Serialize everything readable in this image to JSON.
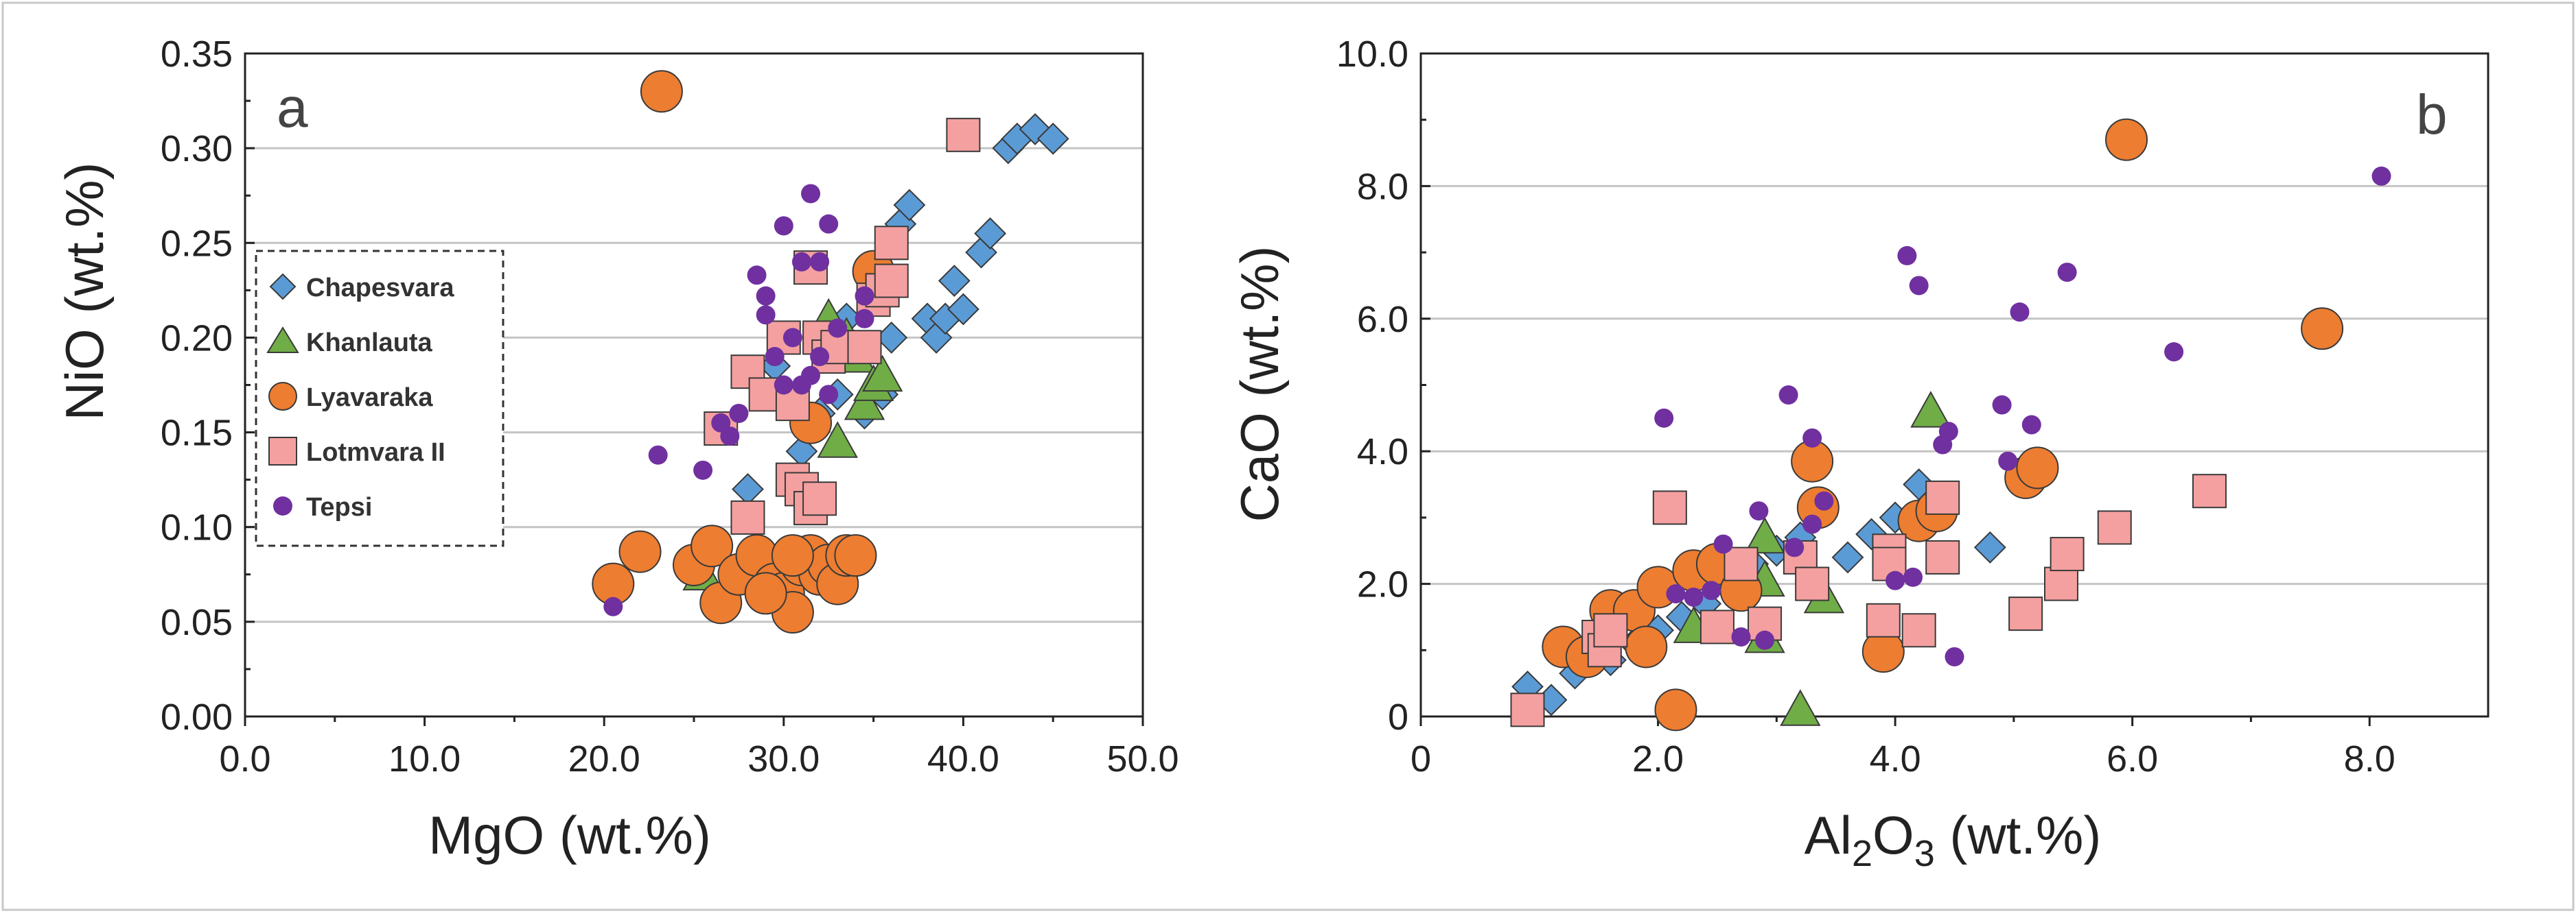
{
  "chart_data": [
    {
      "type": "scatter",
      "panel_label": "a",
      "xlabel": "MgO (wt.%)",
      "ylabel": "NiO (wt.%)",
      "xlim": [
        0,
        50
      ],
      "ylim": [
        0,
        0.35
      ],
      "xticks": [
        "0.0",
        "10.0",
        "20.0",
        "30.0",
        "40.0",
        "50.0"
      ],
      "yticks": [
        "0.00",
        "0.05",
        "0.10",
        "0.15",
        "0.20",
        "0.25",
        "0.30",
        "0.35"
      ],
      "grid": "horizontal",
      "legend": {
        "position": "left",
        "entries": [
          "Chapesvara",
          "Khanlauta",
          "Lyavaraka",
          "Lotmvara II",
          "Tepsi"
        ]
      },
      "series": [
        {
          "name": "Chapesvara",
          "marker": "diamond",
          "color": "#5b9bd5",
          "points": [
            [
              28.0,
              0.12
            ],
            [
              29.5,
              0.185
            ],
            [
              31.0,
              0.14
            ],
            [
              32.0,
              0.16
            ],
            [
              33.0,
              0.17
            ],
            [
              33.5,
              0.21
            ],
            [
              34.0,
              0.19
            ],
            [
              34.5,
              0.16
            ],
            [
              35.0,
              0.22
            ],
            [
              35.5,
              0.17
            ],
            [
              36.0,
              0.2
            ],
            [
              36.5,
              0.26
            ],
            [
              37.0,
              0.27
            ],
            [
              38.0,
              0.21
            ],
            [
              38.5,
              0.2
            ],
            [
              39.0,
              0.21
            ],
            [
              39.5,
              0.23
            ],
            [
              40.0,
              0.215
            ],
            [
              41.0,
              0.245
            ],
            [
              41.5,
              0.255
            ],
            [
              42.5,
              0.3
            ],
            [
              43.0,
              0.305
            ],
            [
              44.0,
              0.31
            ],
            [
              45.0,
              0.305
            ]
          ]
        },
        {
          "name": "Khanlauta",
          "marker": "triangle",
          "color": "#70ad47",
          "points": [
            [
              25.5,
              0.075
            ],
            [
              33.0,
              0.145
            ],
            [
              34.0,
              0.19
            ],
            [
              34.5,
              0.165
            ],
            [
              35.0,
              0.175
            ],
            [
              35.5,
              0.18
            ],
            [
              32.5,
              0.21
            ],
            [
              33.5,
              0.2
            ]
          ]
        },
        {
          "name": "Lyavaraka",
          "marker": "circle",
          "color": "#ed7d31",
          "points": [
            [
              20.5,
              0.07
            ],
            [
              22.0,
              0.087
            ],
            [
              23.2,
              0.33
            ],
            [
              25.0,
              0.08
            ],
            [
              26.0,
              0.09
            ],
            [
              26.5,
              0.06
            ],
            [
              27.5,
              0.075
            ],
            [
              28.5,
              0.085
            ],
            [
              29.5,
              0.07
            ],
            [
              30.0,
              0.065
            ],
            [
              30.5,
              0.055
            ],
            [
              31.0,
              0.08
            ],
            [
              31.5,
              0.085
            ],
            [
              32.0,
              0.075
            ],
            [
              32.5,
              0.08
            ],
            [
              33.0,
              0.07
            ],
            [
              33.5,
              0.085
            ],
            [
              34.0,
              0.085
            ],
            [
              31.5,
              0.155
            ],
            [
              35.0,
              0.235
            ],
            [
              30.5,
              0.085
            ],
            [
              29.0,
              0.065
            ]
          ]
        },
        {
          "name": "Lotmvara II",
          "marker": "square",
          "color": "#f4a0a0",
          "points": [
            [
              26.5,
              0.152
            ],
            [
              28.0,
              0.105
            ],
            [
              28.0,
              0.182
            ],
            [
              29.0,
              0.17
            ],
            [
              30.0,
              0.2
            ],
            [
              30.5,
              0.165
            ],
            [
              30.5,
              0.125
            ],
            [
              31.0,
              0.12
            ],
            [
              31.5,
              0.11
            ],
            [
              31.5,
              0.237
            ],
            [
              32.0,
              0.115
            ],
            [
              32.0,
              0.2
            ],
            [
              32.5,
              0.19
            ],
            [
              33.0,
              0.195
            ],
            [
              34.5,
              0.195
            ],
            [
              35.0,
              0.22
            ],
            [
              35.5,
              0.225
            ],
            [
              36.0,
              0.25
            ],
            [
              36.0,
              0.23
            ],
            [
              40.0,
              0.307
            ]
          ]
        },
        {
          "name": "Tepsi",
          "marker": "small-circle",
          "color": "#7030a0",
          "points": [
            [
              20.5,
              0.058
            ],
            [
              23.0,
              0.138
            ],
            [
              25.5,
              0.13
            ],
            [
              26.5,
              0.155
            ],
            [
              27.0,
              0.148
            ],
            [
              27.5,
              0.16
            ],
            [
              28.5,
              0.233
            ],
            [
              29.0,
              0.222
            ],
            [
              29.0,
              0.212
            ],
            [
              29.5,
              0.19
            ],
            [
              30.0,
              0.175
            ],
            [
              30.0,
              0.259
            ],
            [
              30.5,
              0.2
            ],
            [
              31.0,
              0.175
            ],
            [
              31.0,
              0.24
            ],
            [
              31.5,
              0.18
            ],
            [
              31.5,
              0.276
            ],
            [
              32.0,
              0.19
            ],
            [
              32.0,
              0.24
            ],
            [
              32.5,
              0.17
            ],
            [
              32.5,
              0.26
            ],
            [
              33.0,
              0.205
            ],
            [
              34.5,
              0.222
            ],
            [
              34.5,
              0.21
            ]
          ]
        }
      ]
    },
    {
      "type": "scatter",
      "panel_label": "b",
      "xlabel_main": "Al",
      "xlabel_sub": "2",
      "xlabel_rest": "O",
      "xlabel_sub2": "3",
      "xlabel_tail": " (wt.%)",
      "ylabel": "CaO (wt.%)",
      "xlim": [
        0,
        9
      ],
      "ylim": [
        0,
        10
      ],
      "xticks": [
        "0",
        "2.0",
        "4.0",
        "6.0",
        "8.0"
      ],
      "yticks": [
        "0",
        "2.0",
        "4.0",
        "6.0",
        "8.0",
        "10.0"
      ],
      "grid": "horizontal",
      "series": [
        {
          "name": "Chapesvara",
          "marker": "diamond",
          "color": "#5b9bd5",
          "points": [
            [
              0.9,
              0.45
            ],
            [
              1.1,
              0.25
            ],
            [
              1.3,
              0.65
            ],
            [
              1.6,
              0.85
            ],
            [
              1.8,
              1.1
            ],
            [
              2.0,
              1.3
            ],
            [
              2.2,
              1.5
            ],
            [
              2.4,
              1.7
            ],
            [
              2.6,
              2.0
            ],
            [
              2.8,
              2.3
            ],
            [
              3.0,
              2.5
            ],
            [
              3.2,
              2.7
            ],
            [
              3.6,
              2.4
            ],
            [
              3.8,
              2.75
            ],
            [
              4.0,
              3.0
            ],
            [
              4.2,
              3.5
            ],
            [
              4.8,
              2.55
            ]
          ]
        },
        {
          "name": "Khanlauta",
          "marker": "triangle",
          "color": "#70ad47",
          "points": [
            [
              2.3,
              1.35
            ],
            [
              2.9,
              2.05
            ],
            [
              2.9,
              2.7
            ],
            [
              2.9,
              1.2
            ],
            [
              3.2,
              0.1
            ],
            [
              3.4,
              1.8
            ],
            [
              4.3,
              4.6
            ]
          ]
        },
        {
          "name": "Lyavaraka",
          "marker": "circle",
          "color": "#ed7d31",
          "points": [
            [
              1.2,
              1.05
            ],
            [
              1.4,
              0.9
            ],
            [
              1.6,
              1.6
            ],
            [
              1.8,
              1.6
            ],
            [
              1.9,
              1.05
            ],
            [
              2.0,
              1.95
            ],
            [
              2.15,
              0.1
            ],
            [
              2.3,
              2.2
            ],
            [
              2.5,
              2.3
            ],
            [
              2.7,
              1.9
            ],
            [
              3.3,
              3.85
            ],
            [
              3.35,
              3.15
            ],
            [
              3.9,
              0.98
            ],
            [
              4.2,
              2.95
            ],
            [
              4.35,
              3.1
            ],
            [
              5.1,
              3.6
            ],
            [
              5.2,
              3.75
            ],
            [
              5.95,
              8.7
            ],
            [
              7.6,
              5.85
            ]
          ]
        },
        {
          "name": "Lotmvara II",
          "marker": "square",
          "color": "#f4a0a0",
          "points": [
            [
              0.9,
              0.1
            ],
            [
              1.5,
              1.2
            ],
            [
              1.55,
              1.0
            ],
            [
              1.6,
              1.3
            ],
            [
              2.1,
              3.15
            ],
            [
              2.5,
              1.35
            ],
            [
              2.7,
              2.3
            ],
            [
              2.9,
              1.4
            ],
            [
              3.2,
              2.4
            ],
            [
              3.3,
              2.0
            ],
            [
              3.9,
              1.45
            ],
            [
              3.95,
              2.5
            ],
            [
              3.95,
              2.3
            ],
            [
              4.2,
              1.3
            ],
            [
              4.4,
              3.3
            ],
            [
              4.4,
              2.4
            ],
            [
              5.1,
              1.55
            ],
            [
              5.4,
              2.0
            ],
            [
              5.45,
              2.45
            ],
            [
              5.85,
              2.85
            ],
            [
              6.65,
              3.4
            ]
          ]
        },
        {
          "name": "Tepsi",
          "marker": "small-circle",
          "color": "#7030a0",
          "points": [
            [
              2.05,
              4.5
            ],
            [
              2.15,
              1.85
            ],
            [
              2.3,
              1.8
            ],
            [
              2.45,
              1.9
            ],
            [
              2.55,
              2.6
            ],
            [
              2.7,
              1.2
            ],
            [
              2.85,
              3.1
            ],
            [
              2.9,
              1.15
            ],
            [
              3.1,
              4.85
            ],
            [
              3.15,
              2.55
            ],
            [
              3.3,
              2.9
            ],
            [
              3.3,
              4.2
            ],
            [
              3.4,
              3.25
            ],
            [
              4.0,
              2.05
            ],
            [
              4.1,
              6.95
            ],
            [
              4.15,
              2.1
            ],
            [
              4.2,
              6.5
            ],
            [
              4.4,
              4.1
            ],
            [
              4.45,
              4.3
            ],
            [
              4.5,
              0.9
            ],
            [
              4.9,
              4.7
            ],
            [
              4.95,
              3.85
            ],
            [
              5.05,
              6.1
            ],
            [
              5.15,
              4.4
            ],
            [
              5.45,
              6.7
            ],
            [
              6.35,
              5.5
            ],
            [
              8.1,
              8.15
            ]
          ]
        }
      ]
    }
  ]
}
